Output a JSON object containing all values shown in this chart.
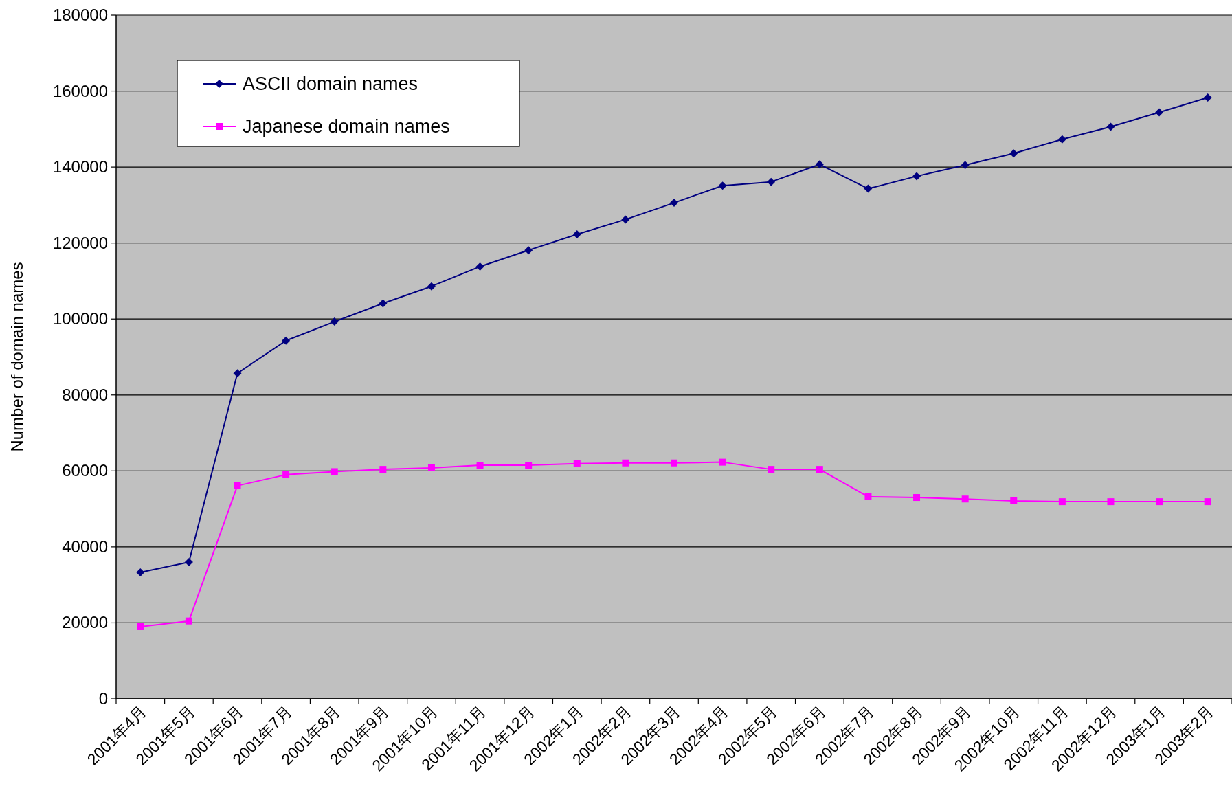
{
  "chart_data": {
    "type": "line",
    "ylabel": "Number of domain names",
    "categories": [
      "2001年4月",
      "2001年5月",
      "2001年6月",
      "2001年7月",
      "2001年8月",
      "2001年9月",
      "2001年10月",
      "2001年11月",
      "2001年12月",
      "2002年1月",
      "2002年2月",
      "2002年3月",
      "2002年4月",
      "2002年5月",
      "2002年6月",
      "2002年7月",
      "2002年8月",
      "2002年9月",
      "2002年10月",
      "2002年11月",
      "2002年12月",
      "2003年1月",
      "2003年2月"
    ],
    "series": [
      {
        "name": "ASCII domain names",
        "color": "#000080",
        "marker": "diamond",
        "values": [
          33300,
          36000,
          85700,
          94300,
          99300,
          104100,
          108600,
          113800,
          118100,
          122300,
          126200,
          130600,
          135100,
          136100,
          140700,
          134300,
          137600,
          140500,
          143600,
          147300,
          150600,
          154400,
          158300
        ]
      },
      {
        "name": "Japanese domain names",
        "color": "#ff00ff",
        "marker": "square",
        "values": [
          19000,
          20500,
          56100,
          59000,
          59800,
          60400,
          60800,
          61500,
          61500,
          61900,
          62100,
          62100,
          62300,
          60400,
          60400,
          53200,
          53000,
          52600,
          52100,
          51900,
          51900,
          51900,
          51900
        ]
      }
    ],
    "ylim": [
      0,
      180000
    ],
    "yticks": [
      0,
      20000,
      40000,
      60000,
      80000,
      100000,
      120000,
      140000,
      160000,
      180000
    ],
    "grid": "y",
    "legend": "top left"
  }
}
